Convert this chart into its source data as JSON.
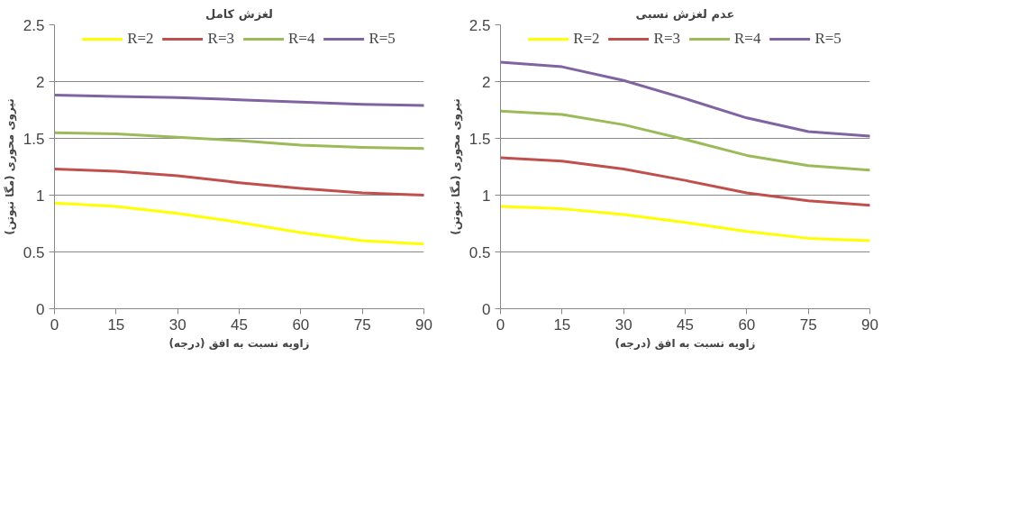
{
  "chart_data": [
    {
      "type": "line",
      "title": "لغزش کامل",
      "xlabel": "زاویه نسبت به افق (درجه)",
      "ylabel": "نیروی محوری (مگا نیوتن)",
      "x": [
        0,
        15,
        30,
        45,
        60,
        75,
        90
      ],
      "xlim": [
        0,
        90
      ],
      "xticks": [
        0,
        15,
        30,
        45,
        60,
        75,
        90
      ],
      "ylim": [
        0,
        2.5
      ],
      "yticks": [
        0,
        0.5,
        1,
        1.5,
        2,
        2.5
      ],
      "grid": "y",
      "legend": "top",
      "marker": "none",
      "line_style": "solid",
      "series": [
        {
          "name": "R=2",
          "color": "#ffff00",
          "values": [
            0.93,
            0.9,
            0.84,
            0.76,
            0.67,
            0.6,
            0.57
          ]
        },
        {
          "name": "R=3",
          "color": "#c0504d",
          "values": [
            1.23,
            1.21,
            1.17,
            1.11,
            1.06,
            1.02,
            1.0
          ]
        },
        {
          "name": "R=4",
          "color": "#9bbb59",
          "values": [
            1.55,
            1.54,
            1.51,
            1.48,
            1.44,
            1.42,
            1.41
          ]
        },
        {
          "name": "R=5",
          "color": "#8064a2",
          "values": [
            1.88,
            1.87,
            1.86,
            1.84,
            1.82,
            1.8,
            1.79
          ]
        }
      ]
    },
    {
      "type": "line",
      "title": "عدم لغزش نسبی",
      "xlabel": "زاویه نسبت به افق (درجه)",
      "ylabel": "نیروی محوری (مگا نیوتن)",
      "x": [
        0,
        15,
        30,
        45,
        60,
        75,
        90
      ],
      "xlim": [
        0,
        90
      ],
      "xticks": [
        0,
        15,
        30,
        45,
        60,
        75,
        90
      ],
      "ylim": [
        0,
        2.5
      ],
      "yticks": [
        0,
        0.5,
        1,
        1.5,
        2,
        2.5
      ],
      "grid": "y",
      "legend": "top",
      "marker": "none",
      "line_style": "solid",
      "series": [
        {
          "name": "R=2",
          "color": "#ffff00",
          "values": [
            0.9,
            0.88,
            0.83,
            0.76,
            0.68,
            0.62,
            0.6
          ]
        },
        {
          "name": "R=3",
          "color": "#c0504d",
          "values": [
            1.33,
            1.3,
            1.23,
            1.13,
            1.02,
            0.95,
            0.91
          ]
        },
        {
          "name": "R=4",
          "color": "#9bbb59",
          "values": [
            1.74,
            1.71,
            1.62,
            1.49,
            1.35,
            1.26,
            1.22
          ]
        },
        {
          "name": "R=5",
          "color": "#8064a2",
          "values": [
            2.17,
            2.13,
            2.01,
            1.85,
            1.68,
            1.56,
            1.52
          ]
        }
      ]
    }
  ]
}
